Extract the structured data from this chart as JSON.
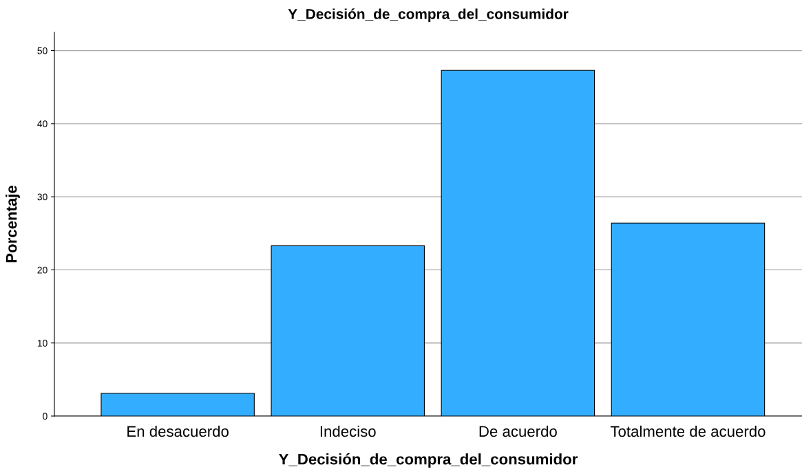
{
  "chart_data": {
    "type": "bar",
    "title": "Y_Decisión_de_compra_del_consumidor",
    "xlabel": "Y_Decisión_de_compra_del_consumidor",
    "ylabel": "Porcentaje",
    "categories": [
      "En desacuerdo",
      "Indeciso",
      "De acuerdo",
      "Totalmente de acuerdo"
    ],
    "values": [
      3.1,
      23.3,
      47.3,
      26.4
    ],
    "color": "#33adff",
    "ylim": [
      0,
      52.5
    ],
    "yticks": [
      0,
      10,
      20,
      30,
      40,
      50
    ],
    "grid": "y"
  }
}
